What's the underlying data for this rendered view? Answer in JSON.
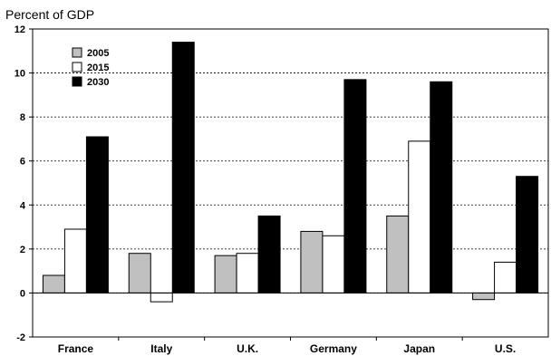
{
  "chart_data": {
    "type": "bar",
    "ylabel": "Percent of GDP",
    "ylim": [
      -2,
      12
    ],
    "yticks": [
      -2,
      0,
      2,
      4,
      6,
      8,
      10,
      12
    ],
    "grid": true,
    "legend_position": "top-left",
    "categories": [
      "France",
      "Italy",
      "U.K.",
      "Germany",
      "Japan",
      "U.S."
    ],
    "series": [
      {
        "name": "2005",
        "color": "#c0c0c0",
        "values": [
          0.8,
          1.8,
          1.7,
          2.8,
          3.5,
          -0.3
        ]
      },
      {
        "name": "2015",
        "color": "#ffffff",
        "values": [
          2.9,
          -0.4,
          1.8,
          2.6,
          6.9,
          1.4
        ]
      },
      {
        "name": "2030",
        "color": "#000000",
        "values": [
          7.1,
          11.4,
          3.5,
          9.7,
          9.6,
          5.3
        ]
      }
    ]
  }
}
